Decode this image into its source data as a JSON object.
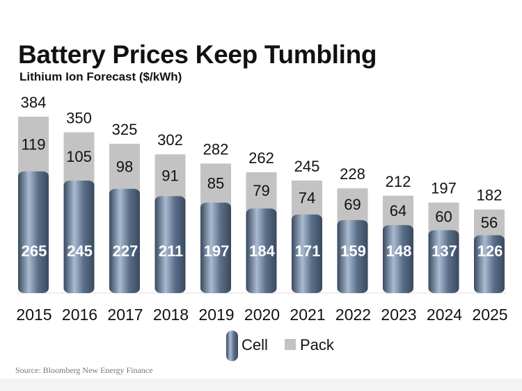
{
  "chart_data": {
    "type": "bar",
    "title": "Battery Prices Keep Tumbling",
    "subtitle": "Lithium Ion Forecast ($/kWh)",
    "categories": [
      "2015",
      "2016",
      "2017",
      "2018",
      "2019",
      "2020",
      "2021",
      "2022",
      "2023",
      "2024",
      "2025"
    ],
    "series": [
      {
        "name": "Cell",
        "values": [
          265,
          245,
          227,
          211,
          197,
          184,
          171,
          159,
          148,
          137,
          126
        ]
      },
      {
        "name": "Pack",
        "values": [
          119,
          105,
          98,
          91,
          85,
          79,
          74,
          69,
          64,
          60,
          56
        ]
      }
    ],
    "totals": [
      384,
      350,
      325,
      302,
      282,
      262,
      245,
      228,
      212,
      197,
      182
    ],
    "stacked": true,
    "xlabel": "",
    "ylabel": "",
    "ylim": [
      0,
      384
    ],
    "grid": false,
    "legend": "bottom-center",
    "source": "Source: Bloomberg New Energy Finance",
    "colors": {
      "cell": "#5b6f8a",
      "cell_light": "#a9bbd1",
      "cell_dark": "#39495e",
      "pack": "#c3c3c3",
      "text_light": "#ffffff",
      "text_dark": "#111111"
    }
  }
}
